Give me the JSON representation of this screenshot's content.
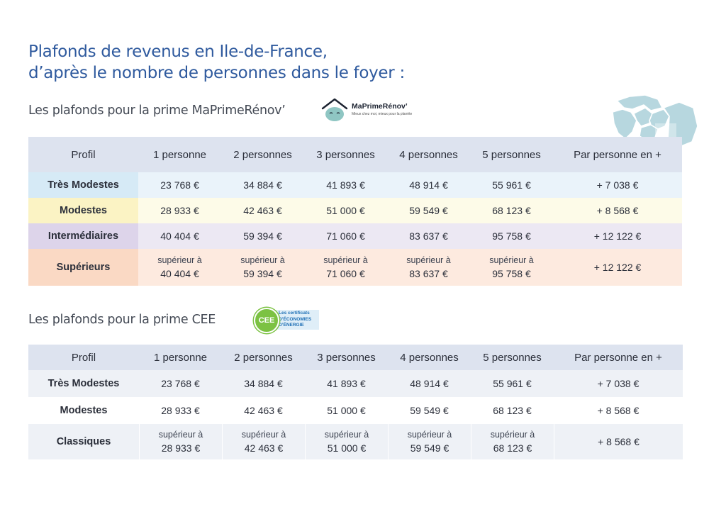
{
  "title": {
    "line1": "Plafonds de revenus en Ile-de-France,",
    "line2": "d’après le nombre de personnes dans le foyer :"
  },
  "section1": {
    "heading": "Les plafonds pour la prime MaPrimeRénov’",
    "logo": {
      "brand": "MaPrimeRénov’",
      "tagline": "Mieux chez moi, mieux pour la planète",
      "icon": "house-face-icon"
    },
    "headers": [
      "Profil",
      "1 personne",
      "2 personnes",
      "3 personnes",
      "4 personnes",
      "5 personnes",
      "Par personne en +"
    ],
    "rows": [
      {
        "label": "Très Modestes",
        "color": "#d6eaf6",
        "cells": [
          "23 768 €",
          "34 884 €",
          "41 893 €",
          "48 914 €",
          "55 961 €",
          "+ 7 038 €"
        ]
      },
      {
        "label": "Modestes",
        "color": "#fbf3c4",
        "cells": [
          "28 933 €",
          "42 463 €",
          "51 000 €",
          "59 549 €",
          "68 123 €",
          "+ 8 568 €"
        ]
      },
      {
        "label": "Intermédiaires",
        "color": "#ddd4ea",
        "cells": [
          "40 404 €",
          "59 394 €",
          "71 060 €",
          "83 637 €",
          "95 758 €",
          "+ 12 122 €"
        ]
      },
      {
        "label": "Supérieurs",
        "color": "#fad9c4",
        "prefix": "supérieur à",
        "cells": [
          "40 404 €",
          "59 394 €",
          "71 060 €",
          "83 637 €",
          "95 758 €",
          "+ 12 122 €"
        ]
      }
    ]
  },
  "section2": {
    "heading": "Les plafonds pour la prime CEE",
    "logo": {
      "badge": "CEE",
      "line1": "Les certificats",
      "line2": "D’ÉCONOMIES",
      "line3": "D’ÉNERGIE"
    },
    "headers": [
      "Profil",
      "1 personne",
      "2 personnes",
      "3 personnes",
      "4 personnes",
      "5 personnes",
      "Par personne en +"
    ],
    "rows": [
      {
        "label": "Très Modestes",
        "cells": [
          "23 768 €",
          "34 884 €",
          "41 893 €",
          "48 914 €",
          "55 961 €",
          "+ 7 038 €"
        ]
      },
      {
        "label": "Modestes",
        "cells": [
          "28 933 €",
          "42 463 €",
          "51 000 €",
          "59 549 €",
          "68 123 €",
          "+ 8 568 €"
        ]
      },
      {
        "label": "Classiques",
        "prefix": "supérieur à",
        "cells": [
          "28 933 €",
          "42 463 €",
          "51 000 €",
          "59 549 €",
          "68 123 €",
          "+ 8 568 €"
        ]
      }
    ]
  },
  "decor": {
    "map_icon": "ile-de-france-map-icon",
    "map_color": "#b7d7df"
  }
}
